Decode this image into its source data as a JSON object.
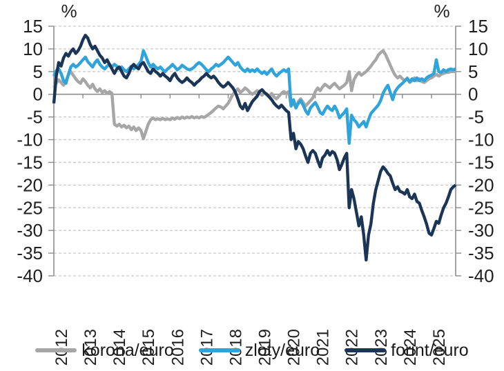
{
  "chart_data": {
    "type": "line",
    "title": "",
    "unit_label_left": "%",
    "unit_label_right": "%",
    "ylim": [
      -40,
      15
    ],
    "yticks": [
      15,
      10,
      5,
      0,
      -5,
      -10,
      -15,
      -20,
      -25,
      -30,
      -35,
      -40
    ],
    "x_years": [
      "2012",
      "2013",
      "2014",
      "2015",
      "2016",
      "2017",
      "2018",
      "2019",
      "2020",
      "2021",
      "2022",
      "2023",
      "2024",
      "2025"
    ],
    "x_start": 2012.0,
    "x_step_months": 1,
    "grid": "dashed horizontal, solid zero axis",
    "legend_position": "bottom",
    "axis_color": "#8c8c8c",
    "grid_color": "#c9c9c9",
    "series": [
      {
        "name": "korona/euro",
        "color": "#a6a6a6",
        "values": [
          1.5,
          2.5,
          3.2,
          2.6,
          2.0,
          3.0,
          4.2,
          5.0,
          4.2,
          3.4,
          2.8,
          2.4,
          3.4,
          2.8,
          2.0,
          1.4,
          2.2,
          1.2,
          0.6,
          1.2,
          0.4,
          0.8,
          0.2,
          0.6,
          0.2,
          -6.6,
          -7.0,
          -6.6,
          -7.2,
          -6.8,
          -7.4,
          -7.0,
          -7.8,
          -7.2,
          -8.0,
          -7.4,
          -8.0,
          -9.8,
          -8.2,
          -6.6,
          -5.6,
          -5.2,
          -5.6,
          -5.4,
          -5.6,
          -5.3,
          -5.6,
          -5.4,
          -5.6,
          -5.2,
          -5.5,
          -5.1,
          -5.4,
          -5.0,
          -5.3,
          -5.0,
          -5.2,
          -4.9,
          -5.2,
          -5.0,
          -5.2,
          -4.9,
          -5.1,
          -4.8,
          -4.4,
          -4.0,
          -3.5,
          -3.0,
          -2.6,
          -2.8,
          -3.2,
          -2.6,
          -2.0,
          -1.0,
          0.0,
          0.6,
          1.2,
          0.4,
          0.8,
          1.4,
          1.0,
          0.4,
          0.0,
          0.4,
          0.8,
          0.2,
          -0.2,
          0.4,
          -0.2,
          -0.6,
          0.2,
          -0.6,
          -1.0,
          -0.4,
          0.2,
          0.6,
          0.2,
          0.6,
          -2.6,
          -1.8,
          -3.0,
          -1.6,
          -1.0,
          -1.8,
          -2.6,
          -2.0,
          -1.4,
          -0.8,
          0.6,
          1.4,
          0.8,
          1.6,
          2.2,
          1.8,
          1.4,
          2.0,
          2.4,
          1.8,
          1.2,
          1.6,
          2.0,
          2.6,
          5.0,
          0.8,
          3.2,
          4.2,
          4.8,
          4.2,
          4.6,
          5.0,
          5.6,
          6.2,
          7.0,
          7.6,
          8.6,
          9.2,
          9.6,
          8.8,
          7.6,
          6.4,
          5.2,
          4.2,
          3.6,
          4.0,
          3.4,
          3.0,
          3.6,
          2.6,
          3.0,
          3.6,
          3.0,
          3.4,
          2.8,
          2.6,
          3.0,
          3.4,
          3.6,
          4.0,
          4.4,
          4.0,
          4.4,
          4.6,
          4.8,
          4.8,
          5.0,
          5.0,
          5.0
        ]
      },
      {
        "name": "zloty/euro",
        "color": "#2ea3dc",
        "values": [
          4.0,
          5.2,
          5.6,
          4.6,
          3.0,
          2.4,
          4.4,
          6.0,
          6.6,
          6.0,
          6.4,
          7.0,
          7.6,
          8.2,
          7.2,
          6.6,
          6.0,
          7.0,
          7.6,
          6.6,
          6.0,
          5.6,
          6.2,
          6.6,
          6.0,
          6.6,
          6.2,
          5.6,
          6.0,
          5.4,
          5.0,
          5.6,
          6.2,
          5.6,
          6.0,
          6.6,
          7.2,
          9.6,
          8.4,
          7.0,
          6.0,
          6.6,
          6.0,
          5.6,
          6.0,
          5.4,
          5.0,
          5.6,
          6.0,
          6.6,
          6.0,
          5.4,
          5.8,
          6.4,
          6.0,
          5.6,
          5.4,
          5.6,
          6.0,
          6.6,
          7.0,
          6.6,
          6.0,
          5.4,
          5.0,
          5.6,
          6.0,
          6.6,
          6.2,
          6.6,
          7.0,
          7.6,
          8.2,
          7.6,
          7.0,
          6.4,
          7.0,
          6.0,
          5.4,
          5.0,
          5.6,
          5.0,
          5.4,
          5.0,
          5.6,
          5.0,
          4.6,
          5.0,
          4.4,
          5.0,
          5.6,
          4.6,
          4.0,
          4.6,
          5.0,
          5.4,
          5.0,
          5.6,
          -2.6,
          -1.2,
          -3.0,
          -2.0,
          -1.4,
          -2.4,
          -3.6,
          -4.4,
          -3.0,
          -2.4,
          -1.8,
          -2.8,
          -4.0,
          -4.4,
          -3.4,
          -2.6,
          -3.2,
          -3.6,
          -2.6,
          -3.6,
          -5.2,
          -4.6,
          -4.0,
          -3.2,
          -10.8,
          -4.6,
          -5.6,
          -6.2,
          -7.2,
          -6.6,
          -6.0,
          -7.2,
          -5.6,
          -4.2,
          -3.6,
          -3.0,
          -2.4,
          -1.4,
          0.2,
          1.2,
          2.0,
          0.4,
          -1.2,
          0.6,
          1.4,
          2.0,
          2.4,
          3.0,
          3.4,
          2.8,
          3.4,
          3.0,
          3.6,
          3.0,
          3.4,
          3.0,
          3.6,
          4.0,
          4.2,
          4.6,
          7.6,
          5.0,
          4.8,
          5.4,
          5.0,
          5.4,
          5.6,
          5.4,
          5.6
        ]
      },
      {
        "name": "forint/euro",
        "color": "#1b3557",
        "values": [
          -2.0,
          4.0,
          7.0,
          6.2,
          8.0,
          9.0,
          8.4,
          9.4,
          10.0,
          9.0,
          9.6,
          10.6,
          12.0,
          13.0,
          12.4,
          11.0,
          10.0,
          10.6,
          9.6,
          8.6,
          8.0,
          7.0,
          7.6,
          6.6,
          5.6,
          4.6,
          5.6,
          6.0,
          5.0,
          4.0,
          3.6,
          4.6,
          6.0,
          6.6,
          6.0,
          5.6,
          6.6,
          7.0,
          6.0,
          5.0,
          4.6,
          5.6,
          5.0,
          4.6,
          4.0,
          4.6,
          4.0,
          3.6,
          3.0,
          4.0,
          4.6,
          3.6,
          3.0,
          2.6,
          3.0,
          3.6,
          3.0,
          2.6,
          2.0,
          2.6,
          3.0,
          3.6,
          4.0,
          4.6,
          4.0,
          3.6,
          4.0,
          3.4,
          2.6,
          2.0,
          1.6,
          2.0,
          2.6,
          2.0,
          1.4,
          0.4,
          -1.0,
          -2.6,
          -3.2,
          -2.0,
          -3.6,
          -2.6,
          -1.6,
          -1.0,
          -0.4,
          0.6,
          1.0,
          0.4,
          0.0,
          -0.6,
          -1.2,
          -2.0,
          -2.6,
          -3.0,
          -2.4,
          -3.0,
          -3.6,
          -4.0,
          -10.0,
          -8.6,
          -12.0,
          -10.4,
          -11.0,
          -12.0,
          -13.6,
          -15.0,
          -13.0,
          -12.4,
          -13.0,
          -14.6,
          -16.0,
          -14.0,
          -13.4,
          -12.4,
          -13.4,
          -12.6,
          -13.0,
          -14.4,
          -16.6,
          -15.4,
          -14.0,
          -13.0,
          -25.0,
          -21.0,
          -23.0,
          -26.0,
          -29.0,
          -27.0,
          -31.0,
          -36.5,
          -31.0,
          -28.5,
          -24.0,
          -21.0,
          -19.0,
          -17.0,
          -16.0,
          -16.6,
          -17.4,
          -18.0,
          -19.6,
          -21.0,
          -20.4,
          -21.4,
          -21.6,
          -22.0,
          -21.0,
          -22.6,
          -23.0,
          -22.0,
          -23.6,
          -24.0,
          -25.6,
          -27.0,
          -28.6,
          -30.6,
          -31.0,
          -29.6,
          -28.0,
          -28.4,
          -26.6,
          -25.0,
          -24.0,
          -22.6,
          -21.0,
          -20.4,
          -20.0
        ]
      }
    ]
  }
}
